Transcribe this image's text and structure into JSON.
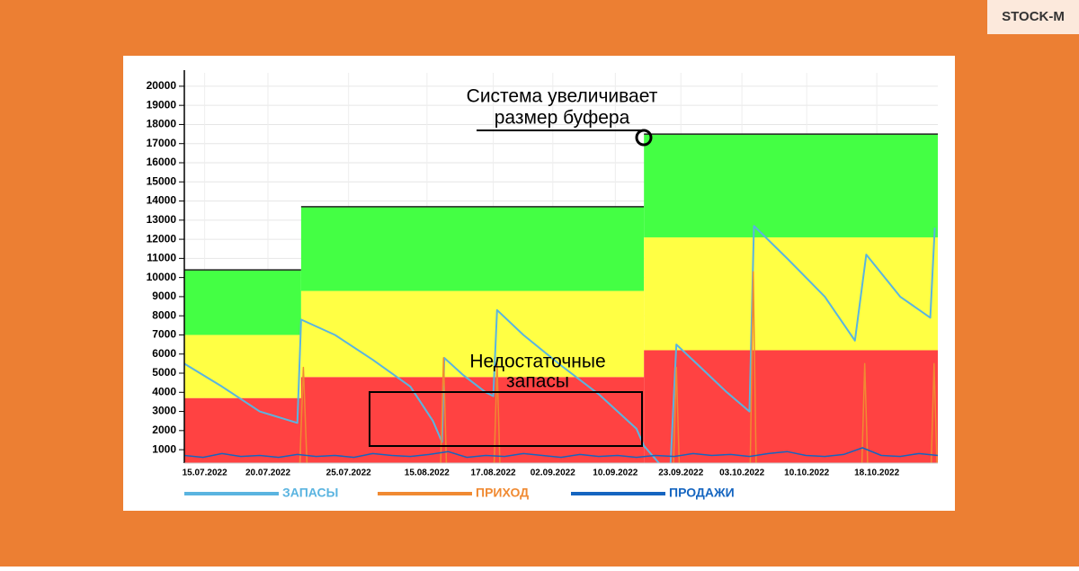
{
  "logo": "STOCK-M",
  "chart_data": {
    "type": "line",
    "annotations": [
      [
        "Система увеличивает",
        "размер буфера"
      ],
      [
        "Недостаточные",
        "запасы"
      ]
    ],
    "xlim": [
      0,
      100
    ],
    "ylim": [
      300,
      20700
    ],
    "yticks": [
      1000,
      2000,
      3000,
      4000,
      5000,
      6000,
      7000,
      8000,
      9000,
      10000,
      11000,
      12000,
      13000,
      14000,
      15000,
      16000,
      17000,
      18000,
      19000,
      20000
    ],
    "xticks": [
      {
        "value": 2.7,
        "label": "15.07.2022"
      },
      {
        "value": 11.1,
        "label": "20.07.2022"
      },
      {
        "value": 21.8,
        "label": "25.07.2022"
      },
      {
        "value": 32.2,
        "label": "15.08.2022"
      },
      {
        "value": 41,
        "label": "17.08.2022"
      },
      {
        "value": 48.9,
        "label": "02.09.2022"
      },
      {
        "value": 57.2,
        "label": "10.09.2022"
      },
      {
        "value": 65.9,
        "label": "23.09.2022"
      },
      {
        "value": 74,
        "label": "03.10.2022"
      },
      {
        "value": 82.6,
        "label": "10.10.2022"
      },
      {
        "value": 91.9,
        "label": "18.10.2022"
      }
    ],
    "grid": true,
    "zones": {
      "x": [
        0,
        15.5,
        61
      ],
      "series": [
        {
          "color": "#ff4242",
          "values": [
            3700,
            4800,
            6200
          ]
        },
        {
          "color": "#ffff44",
          "values": [
            3300,
            4500,
            5900
          ]
        },
        {
          "color": "#44ff44",
          "values": [
            3400,
            4400,
            5400
          ]
        }
      ]
    },
    "series": [
      {
        "name": "ЗАПАСЫ",
        "color": "#5ab4e0",
        "x": [
          0,
          5,
          10,
          15,
          15.5,
          20,
          25,
          30,
          33,
          34.2,
          34.5,
          37,
          40,
          41,
          41.5,
          45,
          50,
          55,
          60,
          61,
          63,
          64.5,
          65.3,
          68,
          72,
          75,
          75.6,
          80,
          85,
          89,
          90.5,
          95,
          99,
          99.6
        ],
        "values": [
          5500,
          4300,
          3000,
          2400,
          7800,
          7000,
          5700,
          4300,
          2500,
          1400,
          5800,
          4900,
          4000,
          3800,
          8300,
          7000,
          5400,
          3900,
          2100,
          1200,
          300,
          0,
          6500,
          5500,
          4000,
          3000,
          12700,
          11000,
          9000,
          6700,
          11200,
          9000,
          7900,
          12600
        ]
      },
      {
        "name": "ПРИХОД",
        "color": "#f08a32",
        "x": [
          0,
          15.3,
          15.8,
          16.3,
          34,
          34.4,
          34.8,
          41.1,
          41.5,
          41.9,
          64.9,
          65.3,
          65.7,
          75.1,
          75.5,
          75.9,
          89.9,
          90.3,
          90.7,
          99.1,
          99.5,
          99.9
        ],
        "values": [
          0,
          0,
          5300,
          0,
          0,
          5800,
          0,
          0,
          5500,
          0,
          0,
          5300,
          0,
          0,
          10300,
          0,
          0,
          5500,
          0,
          0,
          5500,
          0
        ]
      },
      {
        "name": "ПРОДАЖИ",
        "color": "#1565c0",
        "x": [
          0,
          2.5,
          5,
          7.5,
          10,
          12.5,
          15,
          17.5,
          20,
          22.5,
          25,
          27.5,
          30,
          32.5,
          35,
          37.5,
          40,
          42.5,
          45,
          47.5,
          50,
          52.5,
          55,
          57.5,
          60,
          62.5,
          65,
          67.5,
          70,
          72.5,
          75,
          77.5,
          80,
          82.5,
          85,
          87.5,
          90,
          92.5,
          95,
          97.5,
          100
        ],
        "values": [
          700,
          600,
          800,
          650,
          700,
          600,
          750,
          650,
          700,
          600,
          800,
          700,
          650,
          750,
          900,
          600,
          700,
          650,
          800,
          700,
          600,
          750,
          650,
          700,
          600,
          700,
          650,
          800,
          700,
          750,
          650,
          800,
          900,
          700,
          650,
          750,
          1100,
          700,
          650,
          800,
          700
        ]
      }
    ]
  }
}
